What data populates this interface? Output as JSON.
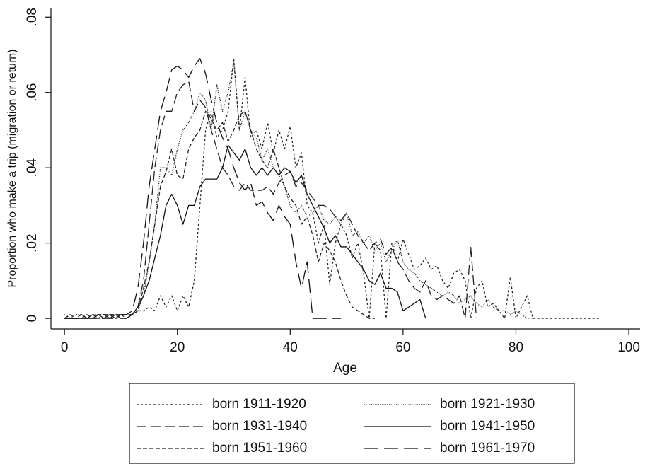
{
  "chart_data": {
    "type": "line",
    "x_label": "Age",
    "y_label": "Proportion who make a trip (migration or return)",
    "xlim": [
      -2.4,
      102
    ],
    "ylim": [
      -0.0028,
      0.0823
    ],
    "xticks": [
      0,
      20,
      40,
      60,
      80,
      100
    ],
    "yticks": [
      0,
      {
        "value": 0.02,
        "label": ".02"
      },
      {
        "value": 0.04,
        "label": ".04"
      },
      {
        "value": 0.06,
        "label": ".06"
      },
      {
        "value": 0.08,
        "label": ".08"
      }
    ],
    "grid": false,
    "legend": "bottom",
    "series": [
      {
        "name": "born 1911-1920",
        "color": "#222222",
        "dash": "3,3",
        "x": [
          0,
          1,
          2,
          3,
          4,
          5,
          6,
          7,
          8,
          9,
          10,
          11,
          12,
          13,
          14,
          15,
          16,
          17,
          18,
          19,
          20,
          21,
          22,
          23,
          24,
          25,
          26,
          27,
          28,
          29,
          30,
          31,
          32,
          33,
          34,
          35,
          36,
          37,
          38,
          39,
          40,
          41,
          42,
          43,
          44,
          45,
          46,
          47,
          48,
          49,
          50,
          51,
          52,
          53,
          54,
          55,
          56,
          57,
          58,
          59,
          60,
          61,
          62,
          63,
          64,
          65,
          66,
          67,
          68,
          69,
          70,
          71,
          72,
          73,
          74,
          75,
          76,
          77,
          78,
          79,
          80,
          81,
          82,
          83,
          84,
          85,
          86,
          87,
          88,
          89,
          90,
          91,
          92,
          93,
          94,
          95
        ],
        "values": [
          0,
          0,
          0,
          0,
          0,
          0,
          0,
          0,
          0,
          0,
          0,
          0,
          0.001,
          0.002,
          0.002,
          0.003,
          0.002,
          0.006,
          0.003,
          0.006,
          0.002,
          0.006,
          0.003,
          0.01,
          0.03,
          0.05,
          0.055,
          0.048,
          0.05,
          0.055,
          0.069,
          0.05,
          0.064,
          0.048,
          0.05,
          0.045,
          0.052,
          0.044,
          0.05,
          0.045,
          0.051,
          0.04,
          0.044,
          0.03,
          0.028,
          0.02,
          0.025,
          0.009,
          0.02,
          0.025,
          0.022,
          0.016,
          0.02,
          0.012,
          0,
          0.02,
          0.018,
          0,
          0.02,
          0.015,
          0.021,
          0.017,
          0.013,
          0.014,
          0.016,
          0.013,
          0.014,
          0.01,
          0.008,
          0.012,
          0.013,
          0.01,
          0,
          0.008,
          0.01,
          0.003,
          0.004,
          0.002,
          0,
          0.011,
          0,
          0.003,
          0.006,
          0,
          0,
          0,
          0,
          0,
          0,
          0,
          0,
          0,
          0,
          0,
          0,
          0
        ]
      },
      {
        "name": "born 1921-1930",
        "color": "#222222",
        "dash": "1,1.5",
        "x": [
          0,
          1,
          2,
          3,
          4,
          5,
          6,
          7,
          8,
          9,
          10,
          11,
          12,
          13,
          14,
          15,
          16,
          17,
          18,
          19,
          20,
          21,
          22,
          23,
          24,
          25,
          26,
          27,
          28,
          29,
          30,
          31,
          32,
          33,
          34,
          35,
          36,
          37,
          38,
          39,
          40,
          41,
          42,
          43,
          44,
          45,
          46,
          47,
          48,
          49,
          50,
          51,
          52,
          53,
          54,
          55,
          56,
          57,
          58,
          59,
          60,
          61,
          62,
          63,
          64,
          65,
          66,
          67,
          68,
          69,
          70,
          71,
          72,
          73,
          74,
          75,
          76,
          77,
          78,
          79,
          80,
          81,
          82,
          83
        ],
        "values": [
          0.001,
          0,
          0.001,
          0.001,
          0,
          0.001,
          0.001,
          0.001,
          0.001,
          0,
          0.001,
          0.001,
          0.001,
          0.002,
          0.006,
          0.015,
          0.025,
          0.04,
          0.04,
          0.038,
          0.045,
          0.05,
          0.052,
          0.055,
          0.06,
          0.058,
          0.05,
          0.062,
          0.055,
          0.06,
          0.068,
          0.05,
          0.055,
          0.05,
          0.048,
          0.042,
          0.045,
          0.04,
          0.038,
          0.035,
          0.03,
          0.028,
          0.03,
          0.027,
          0.028,
          0.03,
          0.026,
          0.025,
          0.027,
          0.025,
          0.028,
          0.022,
          0.023,
          0.02,
          0.022,
          0.018,
          0.02,
          0.015,
          0.018,
          0.021,
          0.015,
          0.013,
          0.012,
          0.01,
          0.009,
          0.008,
          0.007,
          0.006,
          0.007,
          0.006,
          0.004,
          0.005,
          0.006,
          0.004,
          0.003,
          0.005,
          0.003,
          0.002,
          0.002,
          0.001,
          0.002,
          0.001,
          0,
          0
        ]
      },
      {
        "name": "born 1931-1940",
        "color": "#222222",
        "dash": "14,6",
        "x": [
          0,
          1,
          2,
          3,
          4,
          5,
          6,
          7,
          8,
          9,
          10,
          11,
          12,
          13,
          14,
          15,
          16,
          17,
          18,
          19,
          20,
          21,
          22,
          23,
          24,
          25,
          26,
          27,
          28,
          29,
          30,
          31,
          32,
          33,
          34,
          35,
          36,
          37,
          38,
          39,
          40,
          41,
          42,
          43,
          44,
          45,
          46,
          47,
          48,
          49,
          50,
          51,
          52,
          53,
          54,
          55,
          56,
          57,
          58,
          59,
          60,
          61,
          62,
          63,
          64,
          65,
          66,
          67,
          68,
          69,
          70,
          71,
          72,
          73
        ],
        "values": [
          0,
          0,
          0,
          0.001,
          0,
          0,
          0,
          0.001,
          0,
          0,
          0.001,
          0,
          0.001,
          0.003,
          0.01,
          0.025,
          0.04,
          0.05,
          0.055,
          0.055,
          0.06,
          0.062,
          0.063,
          0.055,
          0.058,
          0.056,
          0.05,
          0.045,
          0.04,
          0.038,
          0.035,
          0.034,
          0.036,
          0.034,
          0.034,
          0.034,
          0.035,
          0.033,
          0.036,
          0.038,
          0.039,
          0.035,
          0.036,
          0.034,
          0.032,
          0.03,
          0.03,
          0.029,
          0.027,
          0.026,
          0.028,
          0.025,
          0.022,
          0.02,
          0.018,
          0.02,
          0.021,
          0.017,
          0.019,
          0.015,
          0.013,
          0.01,
          0.008,
          0.007,
          0.01,
          0.006,
          0.005,
          0.006,
          0.005,
          0.004,
          0.006,
          0,
          0.019,
          0
        ]
      },
      {
        "name": "born 1941-1950",
        "color": "#111111",
        "dash": "none",
        "x": [
          0,
          1,
          2,
          3,
          4,
          5,
          6,
          7,
          8,
          9,
          10,
          11,
          12,
          13,
          14,
          15,
          16,
          17,
          18,
          19,
          20,
          21,
          22,
          23,
          24,
          25,
          26,
          27,
          28,
          29,
          30,
          31,
          32,
          33,
          34,
          35,
          36,
          37,
          38,
          39,
          40,
          41,
          42,
          43,
          44,
          45,
          46,
          47,
          48,
          49,
          50,
          51,
          52,
          53,
          54,
          55,
          56,
          57,
          58,
          59,
          60,
          61,
          62,
          63,
          64
        ],
        "values": [
          0,
          0,
          0,
          0,
          0,
          0,
          0.001,
          0,
          0,
          0.001,
          0,
          0,
          0.001,
          0.003,
          0.006,
          0.01,
          0.016,
          0.022,
          0.03,
          0.033,
          0.03,
          0.025,
          0.03,
          0.03,
          0.035,
          0.037,
          0.037,
          0.037,
          0.04,
          0.046,
          0.044,
          0.042,
          0.045,
          0.04,
          0.038,
          0.04,
          0.038,
          0.04,
          0.038,
          0.04,
          0.039,
          0.036,
          0.038,
          0.033,
          0.03,
          0.027,
          0.024,
          0.02,
          0.022,
          0.019,
          0.019,
          0.017,
          0.015,
          0.013,
          0.01,
          0.009,
          0.012,
          0.008,
          0.008,
          0.007,
          0.002,
          0.003,
          0.004,
          0.005,
          0
        ]
      },
      {
        "name": "born 1951-1960",
        "color": "#222222",
        "dash": "6,3",
        "x": [
          0,
          1,
          2,
          3,
          4,
          5,
          6,
          7,
          8,
          9,
          10,
          11,
          12,
          13,
          14,
          15,
          16,
          17,
          18,
          19,
          20,
          21,
          22,
          23,
          24,
          25,
          26,
          27,
          28,
          29,
          30,
          31,
          32,
          33,
          34,
          35,
          36,
          37,
          38,
          39,
          40,
          41,
          42,
          43,
          44,
          45,
          46,
          47,
          48,
          49,
          50,
          51,
          52,
          53,
          54,
          55
        ],
        "values": [
          0,
          0.001,
          0,
          0,
          0.001,
          0,
          0.001,
          0.001,
          0.001,
          0.001,
          0.001,
          0.001,
          0.001,
          0.002,
          0.008,
          0.015,
          0.025,
          0.035,
          0.039,
          0.045,
          0.038,
          0.037,
          0.045,
          0.048,
          0.05,
          0.055,
          0.053,
          0.05,
          0.052,
          0.047,
          0.05,
          0.054,
          0.055,
          0.05,
          0.045,
          0.042,
          0.04,
          0.045,
          0.04,
          0.035,
          0.032,
          0.03,
          0.025,
          0.027,
          0.022,
          0.015,
          0.02,
          0.018,
          0.015,
          0.01,
          0.006,
          0.003,
          0.002,
          0.001,
          0,
          0
        ]
      },
      {
        "name": "born 1961-1970",
        "color": "#111111",
        "dash": "20,8",
        "x": [
          0,
          1,
          2,
          3,
          4,
          5,
          6,
          7,
          8,
          9,
          10,
          11,
          12,
          13,
          14,
          15,
          16,
          17,
          18,
          19,
          20,
          21,
          22,
          23,
          24,
          25,
          26,
          27,
          28,
          29,
          30,
          31,
          32,
          33,
          34,
          35,
          36,
          37,
          38,
          39,
          40,
          41,
          42,
          43,
          44,
          45,
          46,
          47,
          48,
          49
        ],
        "values": [
          0,
          0,
          0,
          0,
          0,
          0.001,
          0,
          0,
          0.001,
          0,
          0.001,
          0.001,
          0.002,
          0.008,
          0.02,
          0.035,
          0.045,
          0.055,
          0.06,
          0.066,
          0.067,
          0.066,
          0.064,
          0.067,
          0.069,
          0.065,
          0.058,
          0.052,
          0.048,
          0.045,
          0.04,
          0.036,
          0.034,
          0.036,
          0.03,
          0.031,
          0.028,
          0.026,
          0.03,
          0.027,
          0.025,
          0.015,
          0.008,
          0.015,
          0,
          0,
          0,
          0,
          0,
          0
        ]
      }
    ]
  }
}
